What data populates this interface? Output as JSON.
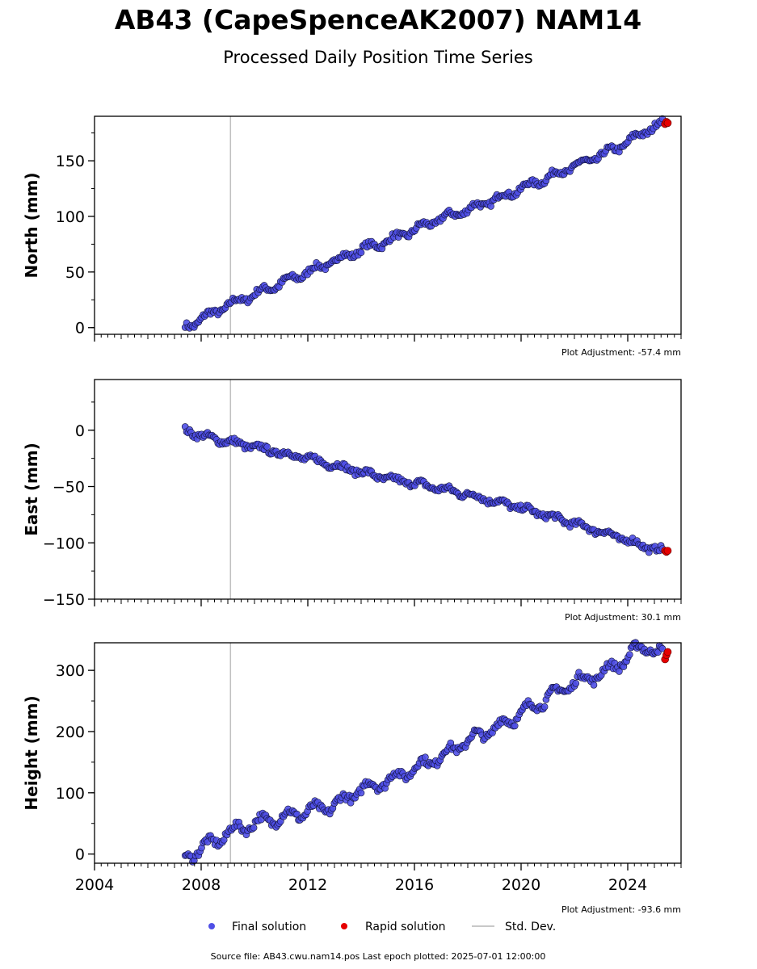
{
  "header": {
    "title": "AB43 (CapeSpenceAK2007) NAM14",
    "subtitle": "Processed Daily Position Time Series"
  },
  "legend": {
    "final_label": "Final solution",
    "rapid_label": "Rapid solution",
    "std_label": "Std. Dev."
  },
  "footer": {
    "text": "Source file: AB43.cwu.nam14.pos  Last epoch plotted: 2025-07-01 12:00:00"
  },
  "colors": {
    "final": "#4f4fe6",
    "final_edge": "#0f0f33",
    "rapid": "#e60000",
    "std": "#c8c8c8",
    "vline": "#c0c0c0"
  },
  "chart_data": [
    {
      "type": "scatter",
      "ylabel": "North (mm)",
      "xlim": [
        2004.0,
        2026.0
      ],
      "ylim": [
        -6,
        190
      ],
      "yticks": [
        0,
        50,
        100,
        150
      ],
      "ytick_labels": [
        "0",
        "50",
        "100",
        "150"
      ],
      "plot_adjustment": "Plot Adjustment: -57.4 mm",
      "vline_x": 2009.1,
      "series": [
        {
          "name": "Final solution",
          "x": [
            2007.4,
            2008.0,
            2009.0,
            2010.0,
            2011.0,
            2012.0,
            2013.0,
            2014.0,
            2015.0,
            2016.0,
            2017.0,
            2018.0,
            2019.0,
            2020.0,
            2021.0,
            2022.0,
            2023.0,
            2024.0,
            2025.3
          ],
          "y": [
            1,
            8,
            20,
            30,
            40,
            50,
            60,
            70,
            78,
            88,
            98,
            106,
            115,
            125,
            135,
            145,
            155,
            167,
            184
          ]
        },
        {
          "name": "Rapid solution",
          "x": [
            2025.4,
            2025.45,
            2025.5
          ],
          "y": [
            183,
            185,
            184
          ]
        }
      ]
    },
    {
      "type": "scatter",
      "ylabel": "East (mm)",
      "xlim": [
        2004.0,
        2026.0
      ],
      "ylim": [
        -150,
        45
      ],
      "yticks": [
        0,
        -50,
        -100,
        -150
      ],
      "ytick_labels": [
        "0",
        "−50",
        "−100",
        "−150"
      ],
      "plot_adjustment": "Plot Adjustment: 30.1 mm",
      "vline_x": 2009.1,
      "series": [
        {
          "name": "Final solution",
          "x": [
            2007.4,
            2008.0,
            2009.0,
            2010.0,
            2011.0,
            2012.0,
            2013.0,
            2014.0,
            2015.0,
            2016.0,
            2017.0,
            2018.0,
            2019.0,
            2020.0,
            2021.0,
            2022.0,
            2023.0,
            2024.0,
            2025.3
          ],
          "y": [
            0,
            -5,
            -10,
            -15,
            -20,
            -25,
            -31,
            -37,
            -43,
            -47,
            -52,
            -57,
            -63,
            -69,
            -76,
            -83,
            -90,
            -98,
            -107
          ]
        },
        {
          "name": "Rapid solution",
          "x": [
            2025.4,
            2025.45,
            2025.5
          ],
          "y": [
            -107,
            -108,
            -107
          ]
        }
      ]
    },
    {
      "type": "scatter",
      "ylabel": "Height (mm)",
      "xlim": [
        2004.0,
        2026.0
      ],
      "ylim": [
        -15,
        345
      ],
      "yticks": [
        0,
        100,
        200,
        300
      ],
      "ytick_labels": [
        "0",
        "100",
        "200",
        "300"
      ],
      "xticks": [
        2004,
        2008,
        2012,
        2016,
        2020,
        2024
      ],
      "xtick_labels": [
        "2004",
        "2008",
        "2012",
        "2016",
        "2020",
        "2024"
      ],
      "plot_adjustment": "Plot Adjustment: -93.6 mm",
      "vline_x": 2009.1,
      "series": [
        {
          "name": "Final solution",
          "x": [
            2007.4,
            2008.0,
            2008.5,
            2009.0,
            2010.0,
            2011.0,
            2012.0,
            2013.0,
            2014.0,
            2015.0,
            2016.0,
            2017.0,
            2018.0,
            2019.0,
            2020.0,
            2021.0,
            2022.0,
            2023.0,
            2024.0,
            2024.6,
            2025.3
          ],
          "y": [
            -5,
            10,
            20,
            35,
            50,
            60,
            70,
            80,
            105,
            120,
            140,
            160,
            185,
            205,
            230,
            255,
            280,
            295,
            320,
            340,
            325
          ]
        },
        {
          "name": "Rapid solution",
          "x": [
            2025.4,
            2025.45,
            2025.5
          ],
          "y": [
            318,
            325,
            330
          ]
        }
      ]
    }
  ]
}
